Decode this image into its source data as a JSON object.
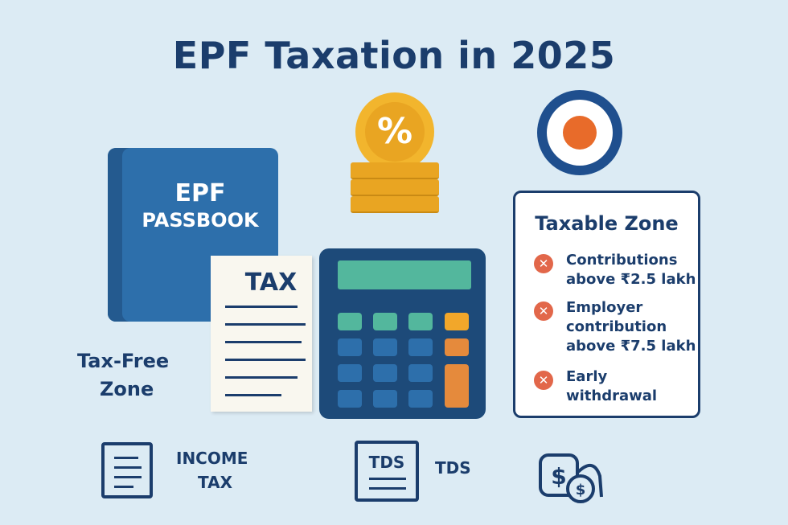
{
  "title": "EPF Taxation in 2025",
  "passbook": {
    "line1": "EPF",
    "line2": "PASSBOOK"
  },
  "tax_document": {
    "label": "TAX"
  },
  "coin": {
    "symbol": "%"
  },
  "tax_free_zone": {
    "line1": "Tax-Free",
    "line2": "Zone"
  },
  "taxable_zone": {
    "title": "Taxable Zone",
    "items": [
      {
        "icon": "x-icon",
        "lines": [
          "Contributions",
          "above ₹2.5 lakh"
        ]
      },
      {
        "icon": "x-icon",
        "lines": [
          "Employer",
          "contribution",
          "above ₹7.5 lakh"
        ]
      },
      {
        "icon": "x-icon",
        "lines": [
          "Early",
          "withdrawal"
        ]
      }
    ]
  },
  "bottom": {
    "income_tax": {
      "line1": "INCOME",
      "line2": "TAX"
    },
    "tds_icon_label": "TDS",
    "tds_label": "TDS"
  },
  "colors": {
    "navy": "#1b3d6c",
    "blue": "#2d6fab",
    "gold": "#f2b52d",
    "teal": "#53b79d",
    "orange": "#e2674a",
    "background": "#dcebf4"
  }
}
